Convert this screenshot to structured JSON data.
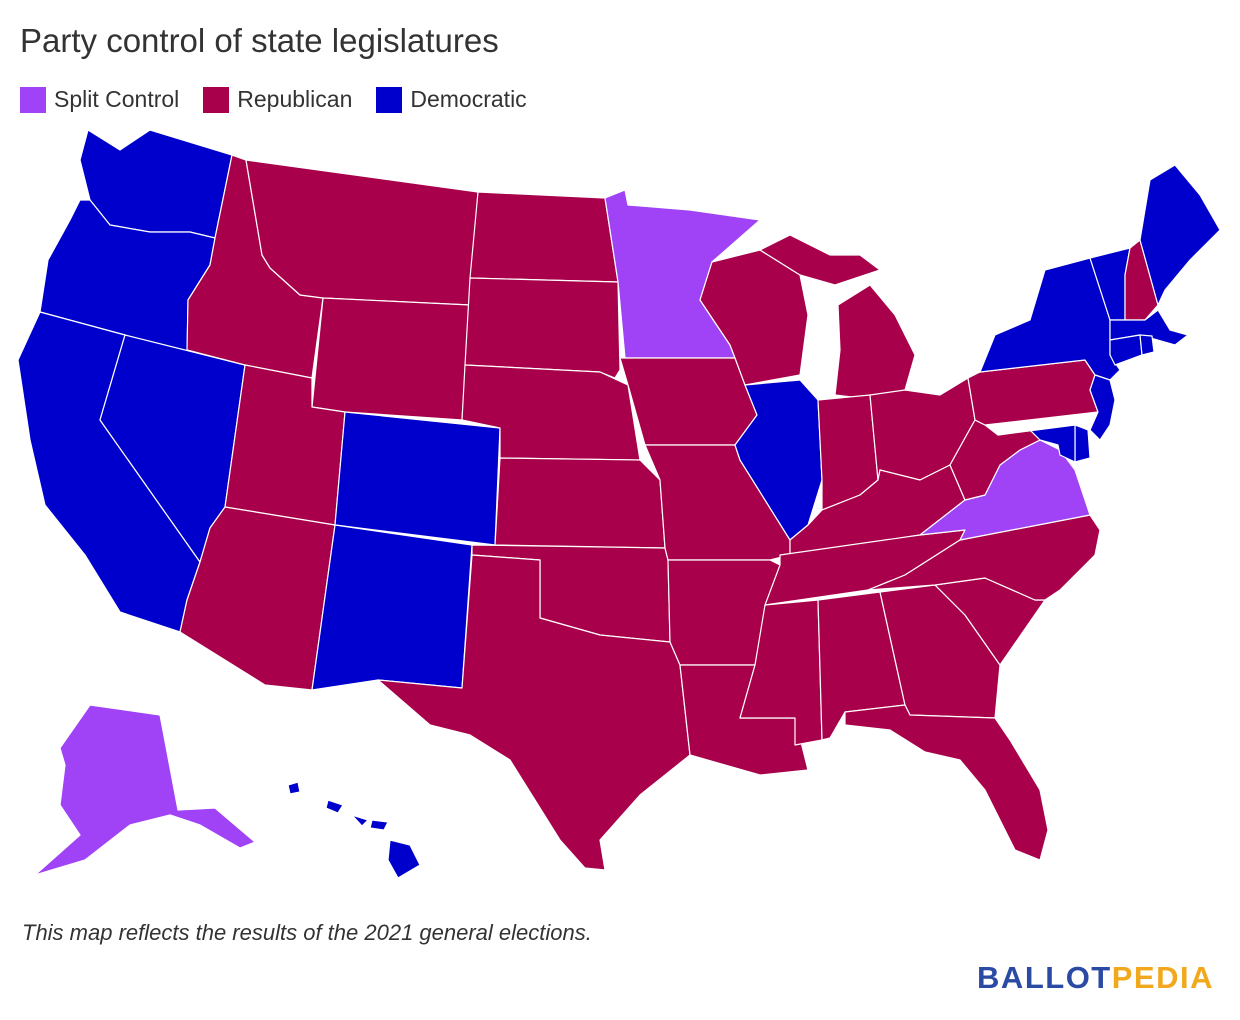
{
  "title": "Party control of state legislatures",
  "legend": [
    {
      "label": "Split Control",
      "color": "#a042f5",
      "key": "split"
    },
    {
      "label": "Republican",
      "color": "#a8004a",
      "key": "rep"
    },
    {
      "label": "Democratic",
      "color": "#0000cc",
      "key": "dem"
    }
  ],
  "colors": {
    "split": "#a042f5",
    "rep": "#a8004a",
    "dem": "#0000cc"
  },
  "states": [
    {
      "name": "Washington",
      "control": "dem"
    },
    {
      "name": "Oregon",
      "control": "dem"
    },
    {
      "name": "California",
      "control": "dem"
    },
    {
      "name": "Nevada",
      "control": "dem"
    },
    {
      "name": "Idaho",
      "control": "rep"
    },
    {
      "name": "Montana",
      "control": "rep"
    },
    {
      "name": "Wyoming",
      "control": "rep"
    },
    {
      "name": "Utah",
      "control": "rep"
    },
    {
      "name": "Arizona",
      "control": "rep"
    },
    {
      "name": "Colorado",
      "control": "dem"
    },
    {
      "name": "New Mexico",
      "control": "dem"
    },
    {
      "name": "North Dakota",
      "control": "rep"
    },
    {
      "name": "South Dakota",
      "control": "rep"
    },
    {
      "name": "Nebraska",
      "control": "rep"
    },
    {
      "name": "Kansas",
      "control": "rep"
    },
    {
      "name": "Oklahoma",
      "control": "rep"
    },
    {
      "name": "Texas",
      "control": "rep"
    },
    {
      "name": "Minnesota",
      "control": "split"
    },
    {
      "name": "Iowa",
      "control": "rep"
    },
    {
      "name": "Missouri",
      "control": "rep"
    },
    {
      "name": "Arkansas",
      "control": "rep"
    },
    {
      "name": "Louisiana",
      "control": "rep"
    },
    {
      "name": "Wisconsin",
      "control": "rep"
    },
    {
      "name": "Illinois",
      "control": "dem"
    },
    {
      "name": "Michigan",
      "control": "rep"
    },
    {
      "name": "Indiana",
      "control": "rep"
    },
    {
      "name": "Ohio",
      "control": "rep"
    },
    {
      "name": "Kentucky",
      "control": "rep"
    },
    {
      "name": "Tennessee",
      "control": "rep"
    },
    {
      "name": "Mississippi",
      "control": "rep"
    },
    {
      "name": "Alabama",
      "control": "rep"
    },
    {
      "name": "Georgia",
      "control": "rep"
    },
    {
      "name": "Florida",
      "control": "rep"
    },
    {
      "name": "South Carolina",
      "control": "rep"
    },
    {
      "name": "North Carolina",
      "control": "rep"
    },
    {
      "name": "Virginia",
      "control": "split"
    },
    {
      "name": "West Virginia",
      "control": "rep"
    },
    {
      "name": "Pennsylvania",
      "control": "rep"
    },
    {
      "name": "New York",
      "control": "dem"
    },
    {
      "name": "Vermont",
      "control": "dem"
    },
    {
      "name": "New Hampshire",
      "control": "rep"
    },
    {
      "name": "Maine",
      "control": "dem"
    },
    {
      "name": "Massachusetts",
      "control": "dem"
    },
    {
      "name": "Rhode Island",
      "control": "dem"
    },
    {
      "name": "Connecticut",
      "control": "dem"
    },
    {
      "name": "New Jersey",
      "control": "dem"
    },
    {
      "name": "Delaware",
      "control": "dem"
    },
    {
      "name": "Maryland",
      "control": "dem"
    },
    {
      "name": "Alaska",
      "control": "split"
    },
    {
      "name": "Hawaii",
      "control": "dem"
    }
  ],
  "footnote": "This map reflects the results of the 2021 general elections.",
  "logo": {
    "part1": "BALLOT",
    "part2": "PEDIA"
  }
}
